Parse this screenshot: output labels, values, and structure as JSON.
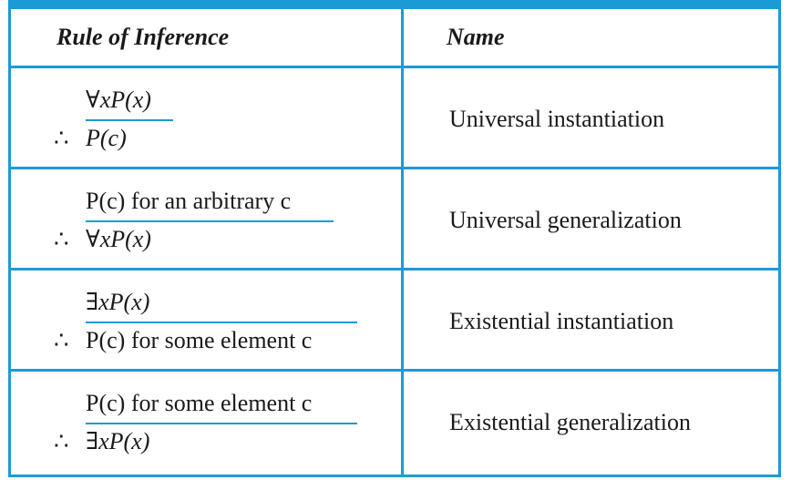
{
  "header": {
    "rule_col": "Rule of Inference",
    "name_col": "Name"
  },
  "rows": [
    {
      "premise": "∀xP(x)",
      "therefore": "∴",
      "conclusion": "P(c)",
      "name": "Universal instantiation"
    },
    {
      "premise": "P(c) for an arbitrary c",
      "therefore": "∴",
      "conclusion": "∀xP(x)",
      "name": "Universal generalization"
    },
    {
      "premise": "∃xP(x)",
      "therefore": "∴",
      "conclusion": "P(c) for some element c",
      "name": "Existential instantiation"
    },
    {
      "premise": "P(c) for some element c",
      "therefore": "∴",
      "conclusion": "∃xP(x)",
      "name": "Existential generalization"
    }
  ],
  "colors": {
    "border": "#1a9bd6",
    "text": "#1a1a1a"
  }
}
